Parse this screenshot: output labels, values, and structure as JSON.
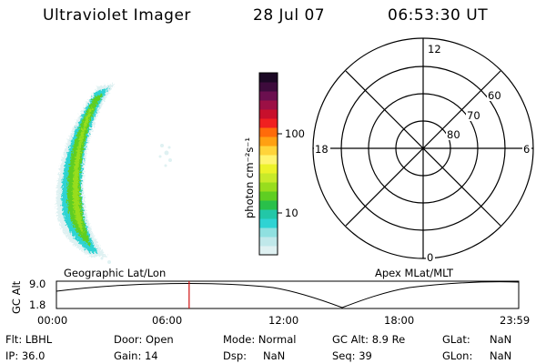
{
  "header": {
    "title": "Ultraviolet Imager",
    "date": "28 Jul 07",
    "time": "06:53:30 UT"
  },
  "colorbar": {
    "label": "photon cm⁻²s⁻¹",
    "ticks": [
      "100",
      "10"
    ],
    "scale": "log",
    "colors": [
      "#dff1f2",
      "#c0e8ea",
      "#8fe0e0",
      "#2fd3d3",
      "#22c7a7",
      "#29c04a",
      "#5fce22",
      "#98dd1e",
      "#c8ea2a",
      "#ecf229",
      "#fff470",
      "#ffd43a",
      "#ffa012",
      "#ff6b0a",
      "#f02020",
      "#c8102c",
      "#9c1045",
      "#6b0f4f",
      "#3d0b3c",
      "#1b0824"
    ]
  },
  "polar": {
    "mlt_labels": {
      "top": "12",
      "left": "18",
      "right": "6",
      "bottom": "0"
    },
    "lat_labels": [
      "60",
      "70",
      "80"
    ]
  },
  "timeline": {
    "left_caption": "Geographic Lat/Lon",
    "right_caption": "Apex  MLat/MLT",
    "axis_label": "GC Alt",
    "y_ticks": [
      "9.0",
      "1.8"
    ],
    "x_ticks": [
      "00:00",
      "06:00",
      "12:00",
      "18:00",
      "23:59"
    ],
    "current_time_hours": 6.89,
    "marker_color": "#d01010"
  },
  "info": {
    "row1": {
      "flt": "Flt:  LBHL",
      "door": "Door:  Open",
      "mode": "Mode:  Normal",
      "gcalt": "GC Alt:  8.9  Re",
      "glat_label": "GLat:",
      "glat_val": "NaN"
    },
    "row2": {
      "ip": "IP:  36.0",
      "gain": "Gain:  14",
      "dsp_label": "Dsp:",
      "dsp_val": "NaN",
      "seq": "Seq:  39",
      "glon_label": "GLon:",
      "glon_val": "NaN"
    }
  }
}
